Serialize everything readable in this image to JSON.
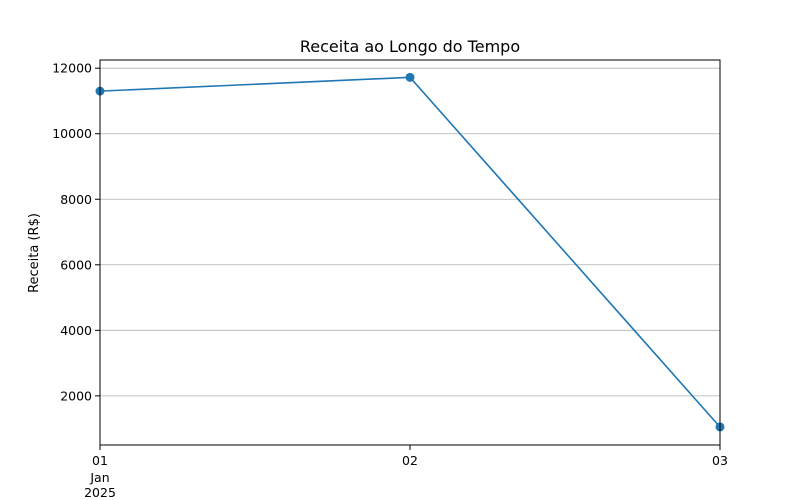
{
  "chart_data": {
    "type": "line",
    "title": "Receita ao Longo do Tempo",
    "xlabel": "",
    "ylabel": "Receita (R$)",
    "x": [
      "01",
      "02",
      "03"
    ],
    "x_sublabels": [
      "Jan",
      "2025"
    ],
    "series": [
      {
        "name": "Receita",
        "values": [
          11300,
          11720,
          1050
        ],
        "color": "#1f77b4"
      }
    ],
    "ylim": [
      500,
      12250
    ],
    "yticks": [
      2000,
      4000,
      6000,
      8000,
      10000,
      12000
    ],
    "grid": "y",
    "legend": "none"
  }
}
